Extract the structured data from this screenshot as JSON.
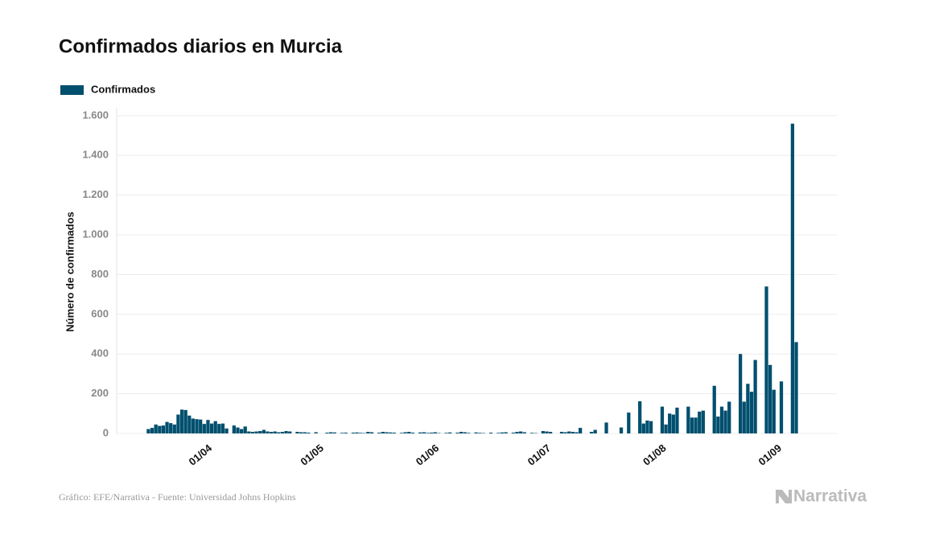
{
  "chart_data": {
    "type": "bar",
    "title": "Confirmados diarios en Murcia",
    "y_label": "Número de confirmados",
    "source": "Gráfico: EFE/Narrativa - Fuente: Universidad Johns Hopkins",
    "logo": "Narrativa",
    "series": [
      {
        "name": "Confirmados",
        "color": "#004f6e",
        "values": [
          22,
          28,
          45,
          38,
          40,
          58,
          52,
          45,
          95,
          120,
          118,
          90,
          75,
          72,
          70,
          48,
          68,
          50,
          62,
          48,
          50,
          25,
          0,
          40,
          30,
          22,
          35,
          10,
          8,
          10,
          12,
          18,
          10,
          8,
          10,
          6,
          8,
          12,
          10,
          0,
          8,
          6,
          6,
          4,
          0,
          6,
          0,
          0,
          4,
          6,
          5,
          0,
          3,
          4,
          0,
          4,
          5,
          3,
          2,
          8,
          6,
          0,
          4,
          8,
          6,
          5,
          4,
          0,
          3,
          6,
          8,
          4,
          0,
          5,
          6,
          3,
          4,
          6,
          2,
          0,
          3,
          5,
          0,
          4,
          8,
          6,
          3,
          0,
          5,
          3,
          2,
          0,
          4,
          0,
          3,
          5,
          6,
          0,
          4,
          8,
          10,
          6,
          0,
          3,
          2,
          0,
          12,
          10,
          8,
          0,
          0,
          8,
          6,
          10,
          8,
          6,
          28,
          0,
          0,
          8,
          18,
          0,
          0,
          55,
          0,
          0,
          0,
          30,
          0,
          105,
          0,
          0,
          162,
          50,
          65,
          62,
          0,
          0,
          135,
          45,
          100,
          95,
          130,
          0,
          0,
          135,
          80,
          80,
          110,
          115,
          0,
          0,
          240,
          85,
          135,
          115,
          160,
          0,
          0,
          400,
          160,
          250,
          210,
          370,
          0,
          0,
          740,
          345,
          220,
          0,
          262,
          0,
          0,
          1560,
          460
        ]
      }
    ],
    "categories": [
      null,
      null,
      null,
      null,
      null,
      null,
      null,
      null,
      null,
      null,
      null,
      null,
      null,
      null,
      null,
      "01/04",
      null,
      null,
      null,
      null,
      null,
      null,
      null,
      null,
      null,
      null,
      null,
      null,
      null,
      null,
      null,
      null,
      null,
      null,
      null,
      null,
      null,
      null,
      null,
      null,
      null,
      null,
      null,
      null,
      null,
      "01/05",
      null,
      null,
      null,
      null,
      null,
      null,
      null,
      null,
      null,
      null,
      null,
      null,
      null,
      null,
      null,
      null,
      null,
      null,
      null,
      null,
      null,
      null,
      null,
      null,
      null,
      null,
      null,
      null,
      null,
      null,
      "01/06",
      null,
      null,
      null,
      null,
      null,
      null,
      null,
      null,
      null,
      null,
      null,
      null,
      null,
      null,
      null,
      null,
      null,
      null,
      null,
      null,
      null,
      null,
      null,
      null,
      null,
      null,
      null,
      null,
      null,
      "01/07",
      null,
      null,
      null,
      null,
      null,
      null,
      null,
      null,
      null,
      null,
      null,
      null,
      null,
      null,
      null,
      null,
      null,
      null,
      null,
      null,
      null,
      null,
      null,
      null,
      null,
      null,
      null,
      null,
      null,
      null,
      "01/08",
      null,
      null,
      null,
      null,
      null,
      null,
      null,
      null,
      null,
      null,
      null,
      null,
      null,
      null,
      null,
      null,
      null,
      null,
      null,
      null,
      null,
      null,
      null,
      null,
      null,
      null,
      null,
      null,
      null,
      null,
      "01/09",
      null,
      null,
      null,
      null,
      null,
      null
    ],
    "ylim": [
      0,
      1640
    ],
    "yticks": [
      0,
      200,
      400,
      600,
      800,
      {
        "value": 1000,
        "label": "1.000"
      },
      {
        "value": 1200,
        "label": "1.200"
      },
      {
        "value": 1400,
        "label": "1.400"
      },
      {
        "value": 1600,
        "label": "1.600"
      }
    ],
    "grid": true,
    "legend": "top-left"
  }
}
